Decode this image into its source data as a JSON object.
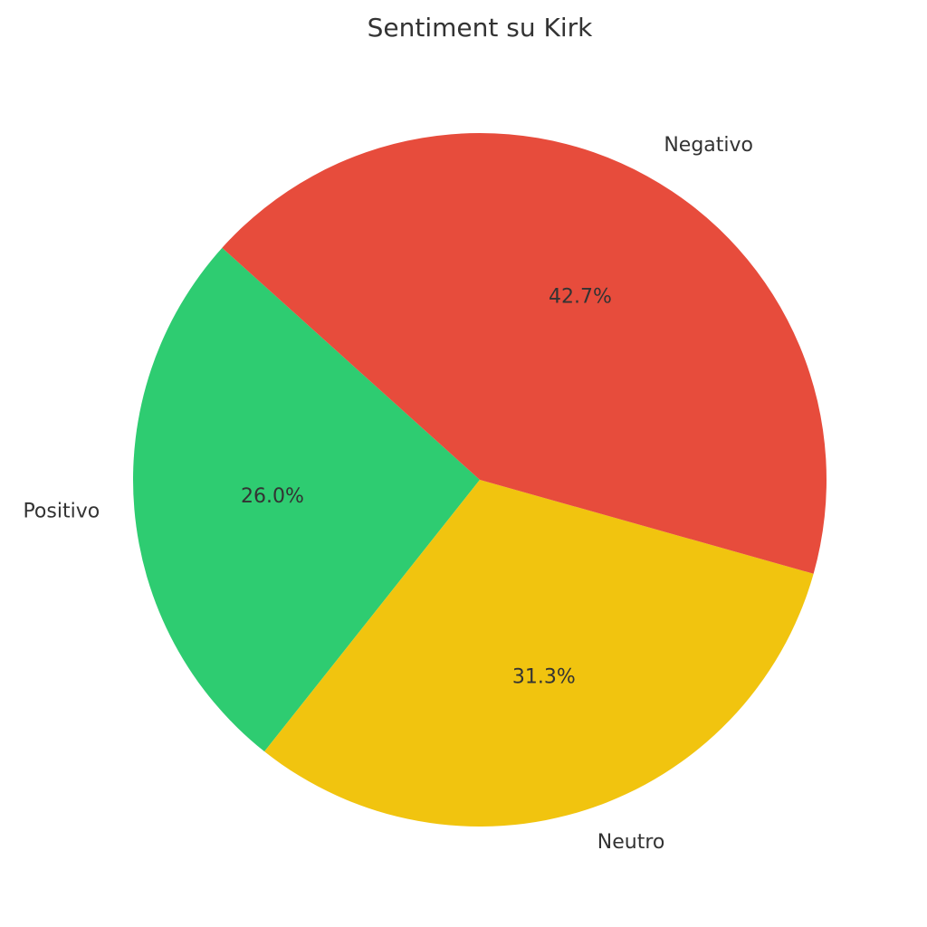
{
  "chart_data": {
    "type": "pie",
    "title": "Sentiment su Kirk",
    "start_angle_deg": 138,
    "direction": "counterclockwise",
    "slices": [
      {
        "label": "Positivo",
        "value": 26.0,
        "pct_label": "26.0%",
        "color": "#2ecc71"
      },
      {
        "label": "Neutro",
        "value": 31.3,
        "pct_label": "31.3%",
        "color": "#f1c40f"
      },
      {
        "label": "Negativo",
        "value": 42.7,
        "pct_label": "42.7%",
        "color": "#e74c3c"
      }
    ]
  }
}
